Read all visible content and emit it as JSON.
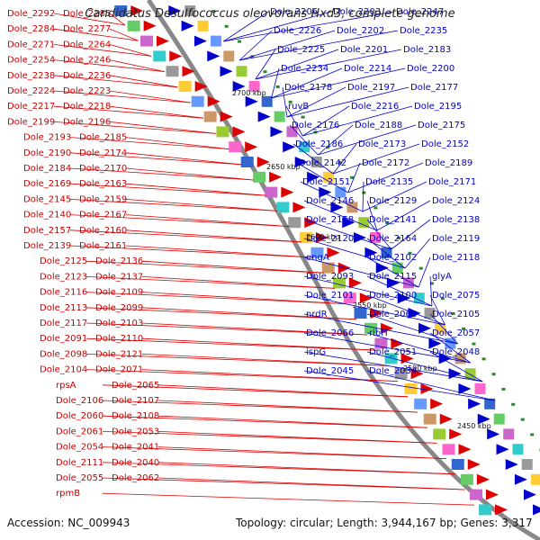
{
  "title": "Candidatus Desulfococcus oleovorans Hxd3, complete genome",
  "footer": {
    "accession": "Accession: NC_009943",
    "topology": "Topology: circular; Length: 3,944,167 bp; Genes: 3,317"
  },
  "colors": {
    "reverse": "#dd0000",
    "forward": "#0000cc",
    "backbone": "#888888",
    "tick_mark": "#2a8a2a"
  },
  "scale_ticks": [
    "2700 kbp",
    "2650 kbp",
    "2600 kbp",
    "2550 kbp",
    "2500 kbp",
    "2450 kbp"
  ],
  "reverse_labels": [
    "Dole_2292",
    "Dole_2285",
    "Dole_2284",
    "Dole_2277",
    "Dole_2271",
    "Dole_2264",
    "Dole_2254",
    "Dole_2246",
    "Dole_2238",
    "Dole_2236",
    "Dole_2224",
    "Dole_2223",
    "Dole_2217",
    "Dole_2218",
    "Dole_2199",
    "Dole_2196",
    "Dole_2193",
    "Dole_2185",
    "Dole_2190",
    "Dole_2174",
    "Dole_2184",
    "Dole_2170",
    "Dole_2169",
    "Dole_2163",
    "Dole_2145",
    "Dole_2159",
    "Dole_2140",
    "Dole_2167",
    "Dole_2157",
    "Dole_2160",
    "Dole_2139",
    "Dole_2161",
    "Dole_2125",
    "Dole_2136",
    "Dole_2123",
    "Dole_2137",
    "Dole_2116",
    "Dole_2109",
    "Dole_2113",
    "Dole_2099",
    "Dole_2117",
    "Dole_2103",
    "Dole_2091",
    "Dole_2110",
    "Dole_2098",
    "Dole_2121",
    "Dole_2104",
    "Dole_2071",
    "rpsA",
    "Dole_2065",
    "Dole_2106",
    "Dole_2107",
    "Dole_2060",
    "Dole_2108",
    "Dole_2061",
    "Dole_2053",
    "Dole_2054",
    "Dole_2041",
    "Dole_2111",
    "Dole_2040",
    "Dole_2055",
    "Dole_2062",
    "rpmB"
  ],
  "forward_labels": [
    "Dole_2206",
    "Dole_2203",
    "Dole_2247",
    "Dole_2226",
    "Dole_2202",
    "Dole_2235",
    "Dole_2225",
    "Dole_2201",
    "Dole_2183",
    "Dole_2234",
    "Dole_2214",
    "Dole_2200",
    "Dole_2178",
    "Dole_2197",
    "Dole_2177",
    "ruvB",
    "Dole_2216",
    "Dole_2195",
    "Dole_2176",
    "Dole_2188",
    "Dole_2175",
    "Dole_2186",
    "Dole_2173",
    "Dole_2152",
    "Dole_2142",
    "Dole_2172",
    "Dole_2189",
    "Dole_2151",
    "Dole_2135",
    "Dole_2171",
    "Dole_2146",
    "Dole_2129",
    "Dole_2124",
    "Dole_2158",
    "Dole_2141",
    "Dole_2138",
    "Dole_2120",
    "Dole_2164",
    "Dole_2119",
    "engA",
    "Dole_2102",
    "Dole_2118",
    "Dole_2093",
    "Dole_2115",
    "glyA",
    "Dole_2101",
    "Dole_2100",
    "Dole_2075",
    "nrdR",
    "Dole_2068",
    "Dole_2105",
    "Dole_2066",
    "ribH",
    "Dole_2057",
    "ispG",
    "Dole_2051",
    "Dole_2048",
    "Dole_2045",
    "Dole_2034"
  ]
}
